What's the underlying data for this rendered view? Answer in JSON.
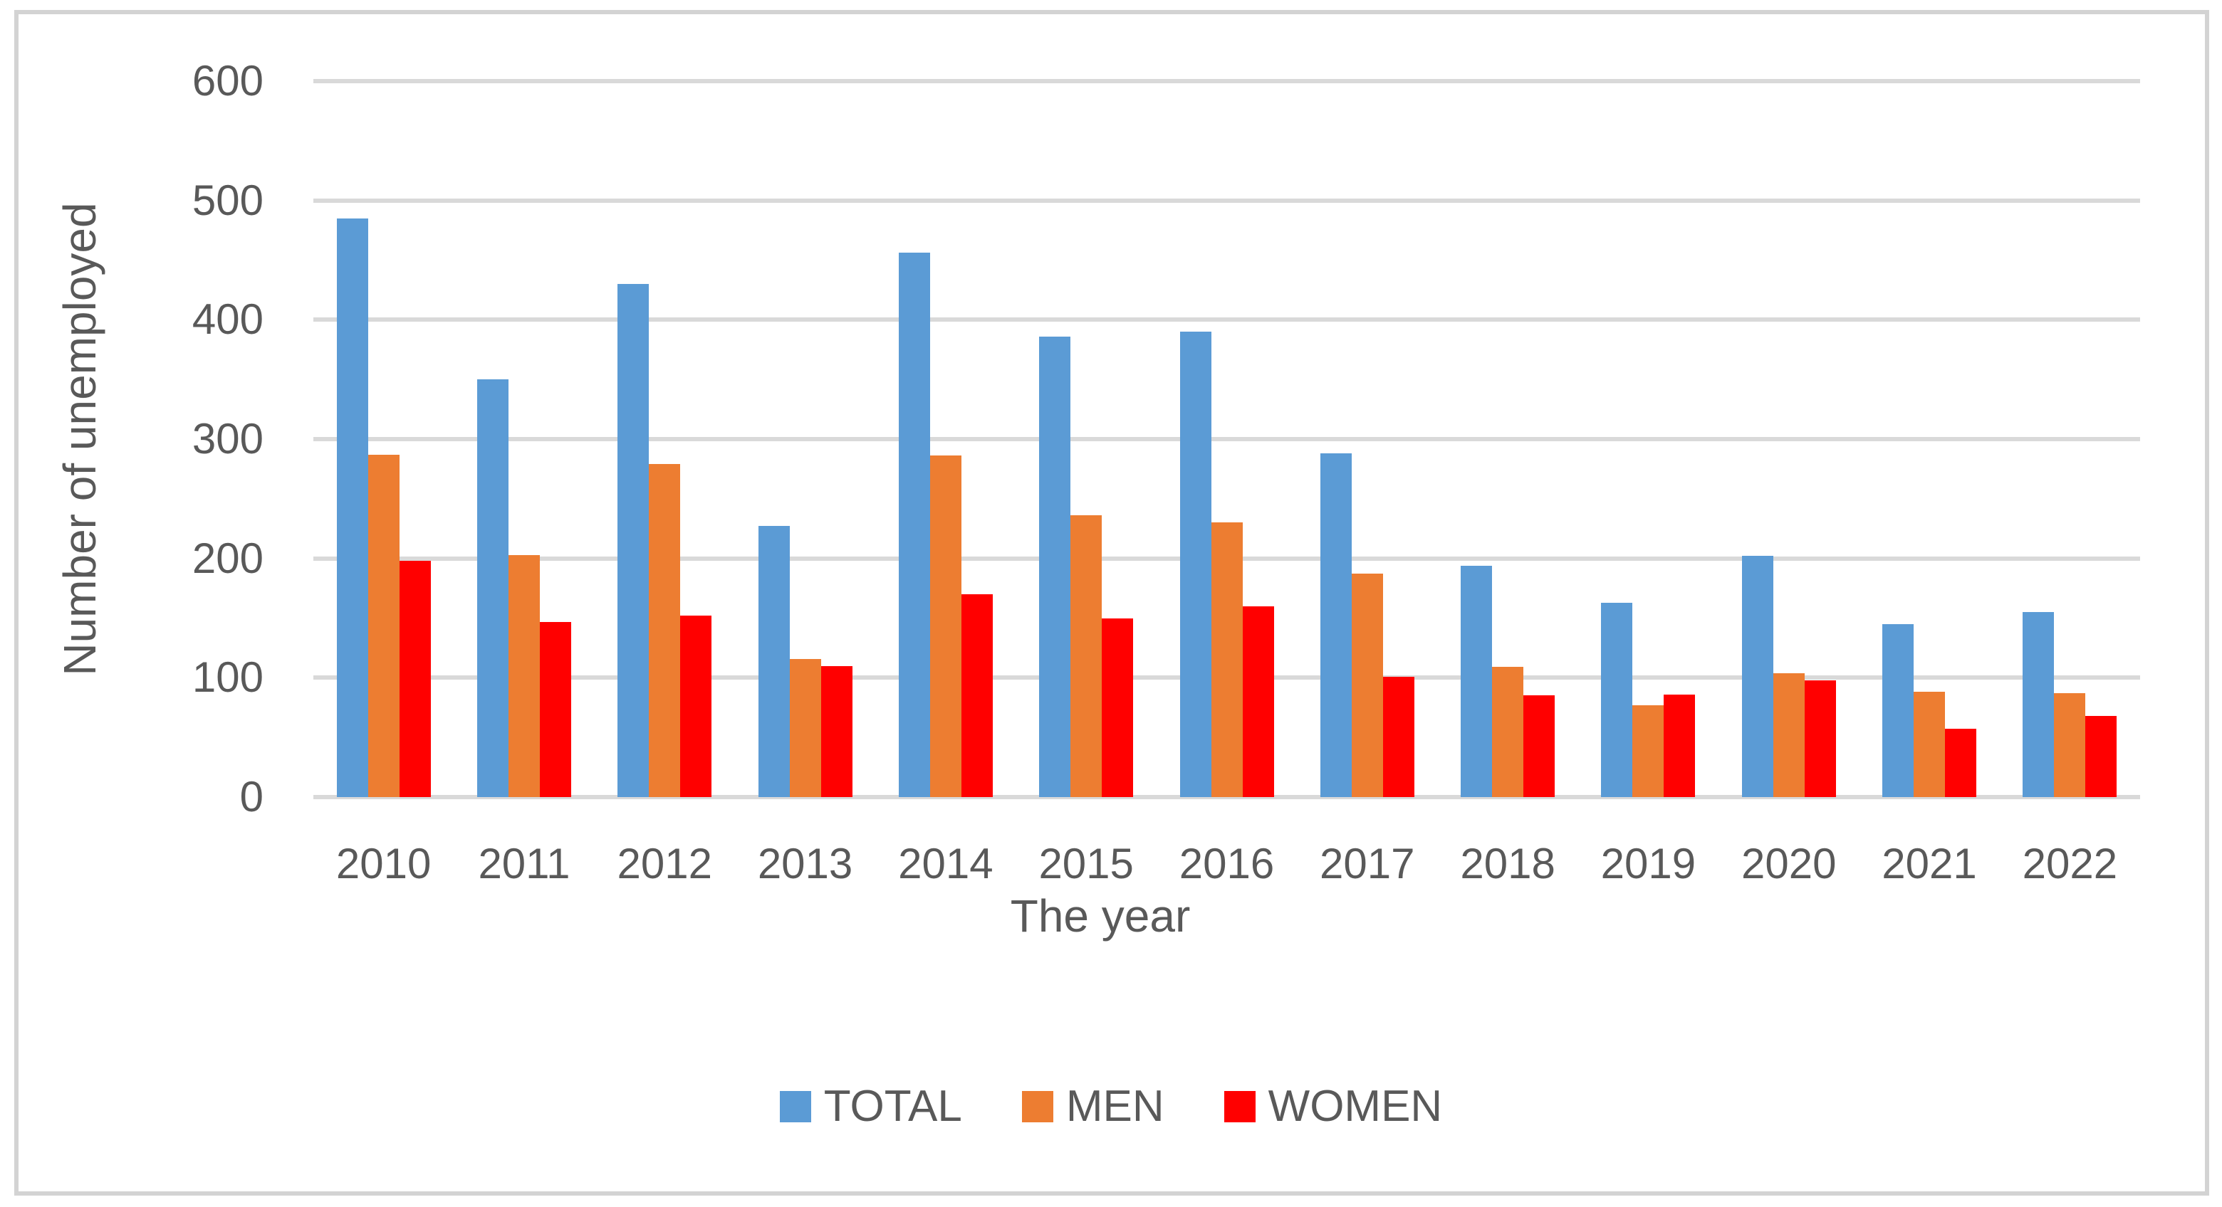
{
  "chart_data": {
    "type": "bar",
    "title": "",
    "categories": [
      "2010",
      "2011",
      "2012",
      "2013",
      "2014",
      "2015",
      "2016",
      "2017",
      "2018",
      "2019",
      "2020",
      "2021",
      "2022"
    ],
    "series": [
      {
        "name": "TOTAL",
        "color": "#5B9BD5",
        "values": [
          485,
          350,
          430,
          227,
          456,
          386,
          390,
          288,
          194,
          163,
          202,
          145,
          155
        ]
      },
      {
        "name": "MEN",
        "color": "#ED7D31",
        "values": [
          287,
          203,
          279,
          116,
          286,
          236,
          230,
          187,
          109,
          77,
          104,
          88,
          87
        ]
      },
      {
        "name": "WOMEN",
        "color": "#FF0000",
        "values": [
          198,
          147,
          152,
          110,
          170,
          150,
          160,
          101,
          85,
          86,
          98,
          57,
          68
        ]
      }
    ],
    "xlabel": "The year",
    "ylabel": "Number of unemployed",
    "ylim": [
      0,
      600
    ],
    "yticks": [
      0,
      100,
      200,
      300,
      400,
      500,
      600
    ],
    "grid": true,
    "legend_position": "bottom",
    "colors": {
      "gridline": "#D9D9D9",
      "axis_text": "#595959",
      "frame": "#D3D3D3",
      "background": "#FFFFFF"
    }
  }
}
